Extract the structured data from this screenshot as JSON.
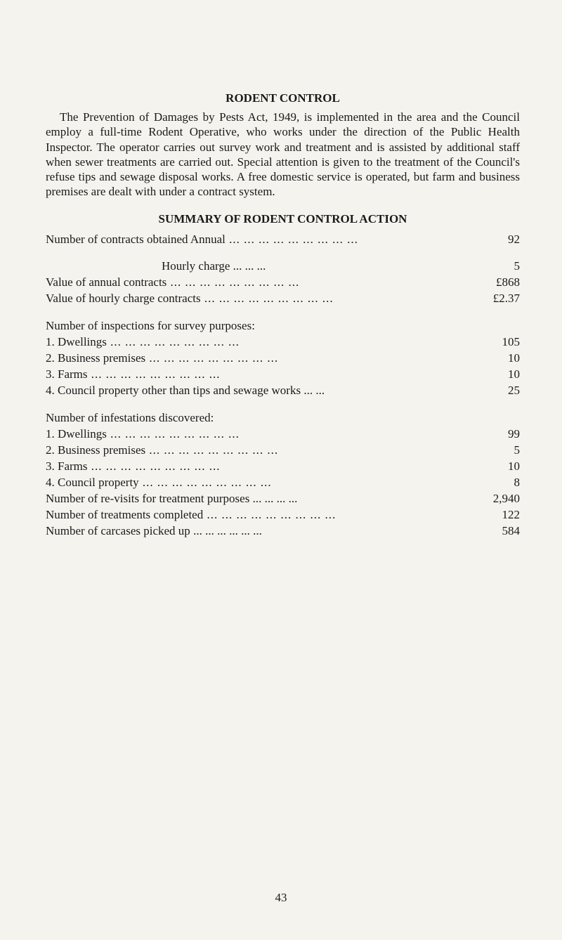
{
  "title": "RODENT CONTROL",
  "paragraph": "The Prevention of Damages by Pests Act, 1949, is implemented in the area and the Council employ a full-time Rodent Operative, who works under the direction of the Public Health Inspector. The operator carries out survey work and treatment and is assisted by additional staff when sewer treatments are carried out. Special attention is given to the treatment of the Council's refuse tips and sewage disposal works. A free domestic service is operated, but farm and business premises are dealt with under a contract system.",
  "summary_title": "SUMMARY OF RODENT CONTROL ACTION",
  "rows": {
    "contracts_annual": {
      "label": "Number of contracts obtained   Annual",
      "value": "92"
    },
    "contracts_hourly": {
      "label": "Hourly  charge",
      "value": "5"
    },
    "annual_value": {
      "label": "Value  of  annual  contracts",
      "value": "£868"
    },
    "hourly_value": {
      "label": "Value  of  hourly  charge  contracts",
      "value": "£2.37"
    },
    "inspections_header": {
      "label": "Number of inspections for survey purposes:"
    },
    "insp_1": {
      "label": "1.  Dwellings",
      "value": "105"
    },
    "insp_2": {
      "label": "2.  Business  premises",
      "value": "10"
    },
    "insp_3": {
      "label": "3.  Farms",
      "value": "10"
    },
    "insp_4": {
      "label": "4.  Council  property  other  than  tips  and  sewage  works",
      "value": "25"
    },
    "infest_header": {
      "label": "Number of infestations discovered:"
    },
    "inf_1": {
      "label": "1.  Dwellings",
      "value": "99"
    },
    "inf_2": {
      "label": "2.  Business  premises",
      "value": "5"
    },
    "inf_3": {
      "label": "3.  Farms",
      "value": "10"
    },
    "inf_4": {
      "label": "4.  Council  property",
      "value": "8"
    },
    "revisits": {
      "label": "Number  of  re-visits  for  treatment  purposes",
      "value": "2,940"
    },
    "treatments": {
      "label": "Number  of  treatments  completed",
      "value": "122"
    },
    "carcases": {
      "label": "Number  of  carcases  picked  up",
      "value": "584"
    }
  },
  "page_number": "43"
}
